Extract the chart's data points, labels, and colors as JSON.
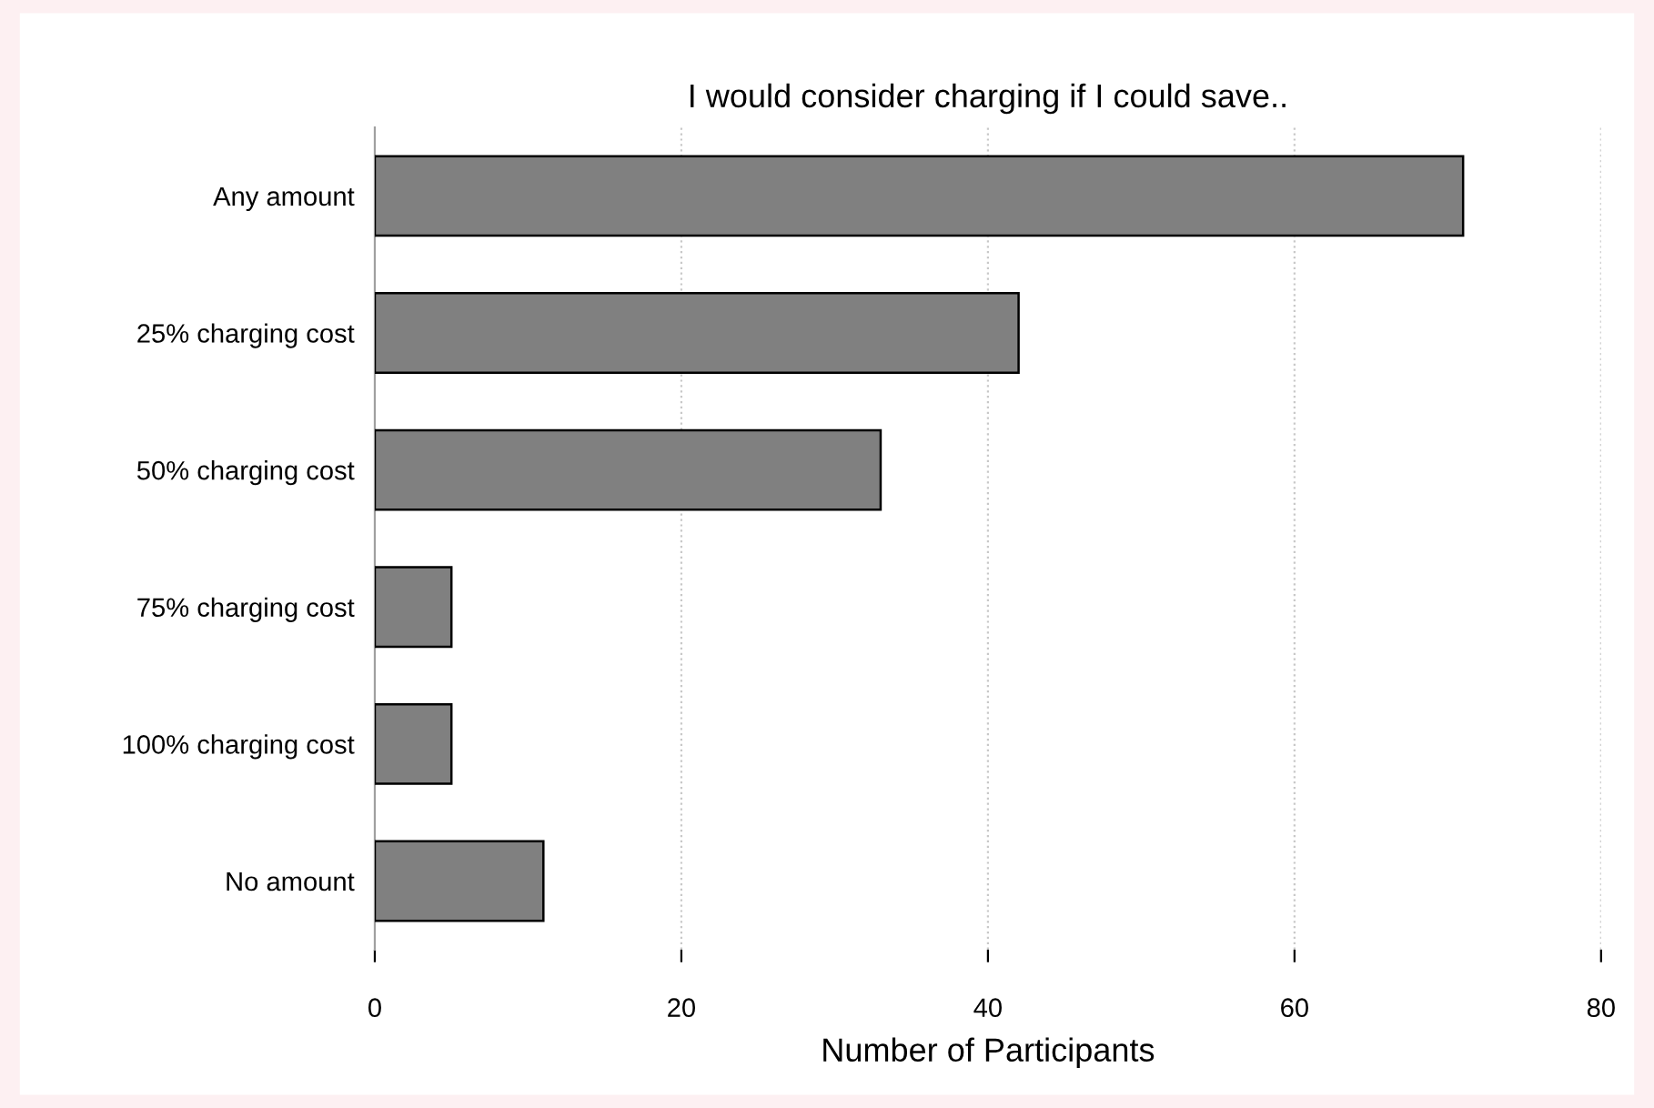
{
  "chart_data": {
    "type": "bar",
    "orientation": "horizontal",
    "title": "I would consider charging if I could save..",
    "xlabel": "Number of Participants",
    "categories": [
      "Any amount",
      "25% charging cost",
      "50% charging cost",
      "75% charging cost",
      "100% charging cost",
      "No amount"
    ],
    "values": [
      71,
      42,
      33,
      5,
      5,
      11
    ],
    "color": "#808080",
    "xlim": [
      0,
      80
    ],
    "xticks": [
      0,
      20,
      40,
      60,
      80
    ],
    "grid": "x",
    "legend": false
  }
}
